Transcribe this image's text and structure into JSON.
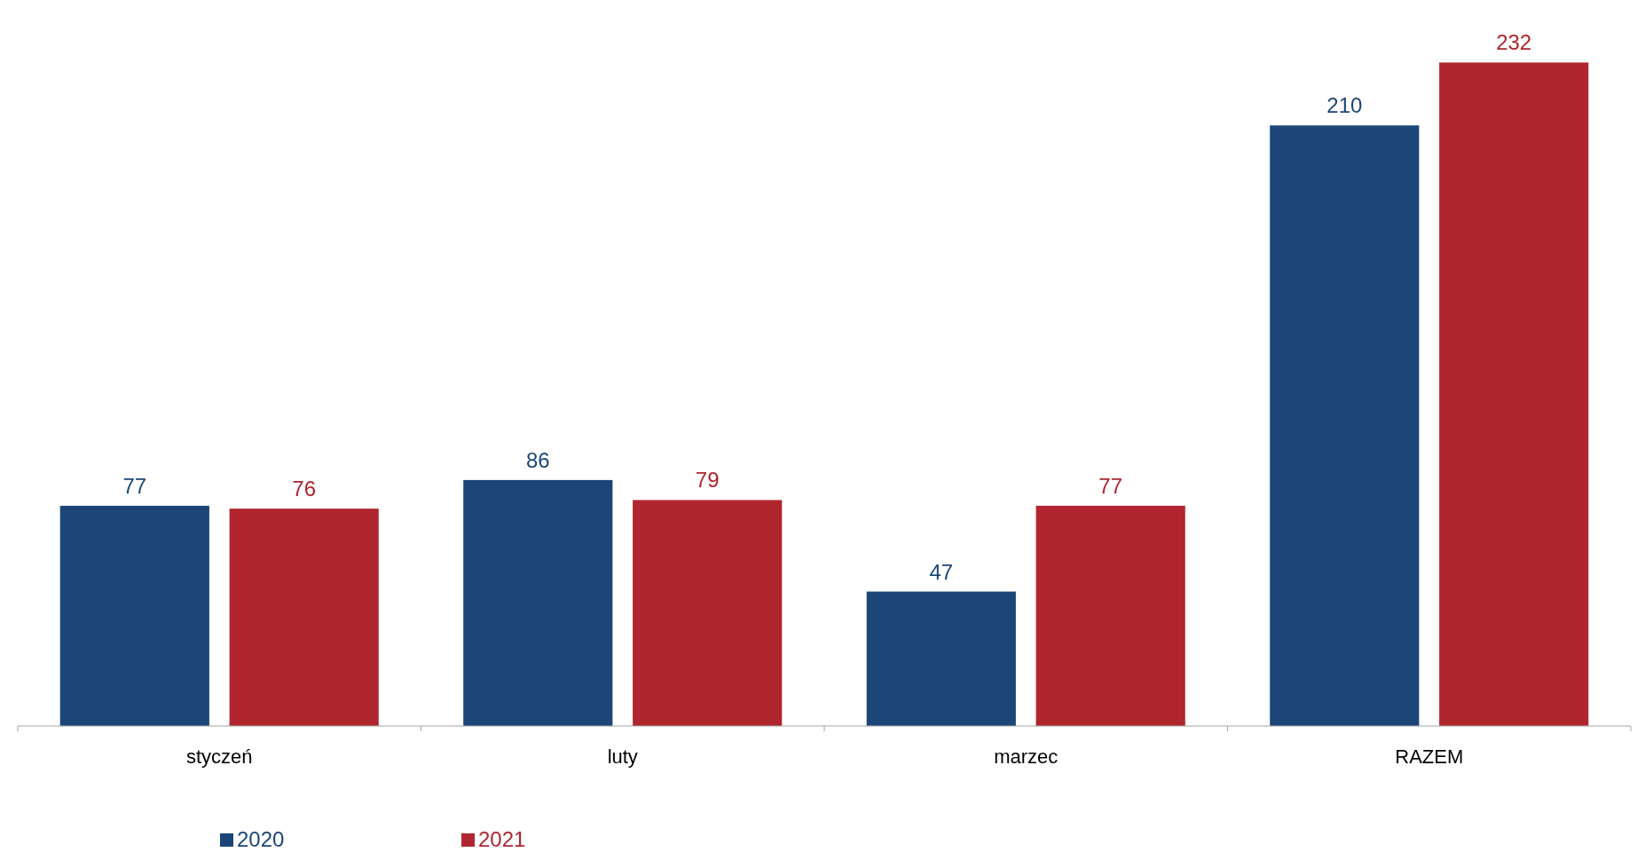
{
  "chart_data": {
    "type": "bar",
    "categories": [
      "styczeń",
      "luty",
      "marzec",
      "RAZEM"
    ],
    "series": [
      {
        "name": "2020",
        "color": "#1b4677",
        "values": [
          77,
          86,
          47,
          210
        ]
      },
      {
        "name": "2021",
        "color": "#b0252e",
        "values": [
          76,
          79,
          77,
          232
        ]
      }
    ],
    "data_labels": true,
    "legend": "bottom left"
  }
}
